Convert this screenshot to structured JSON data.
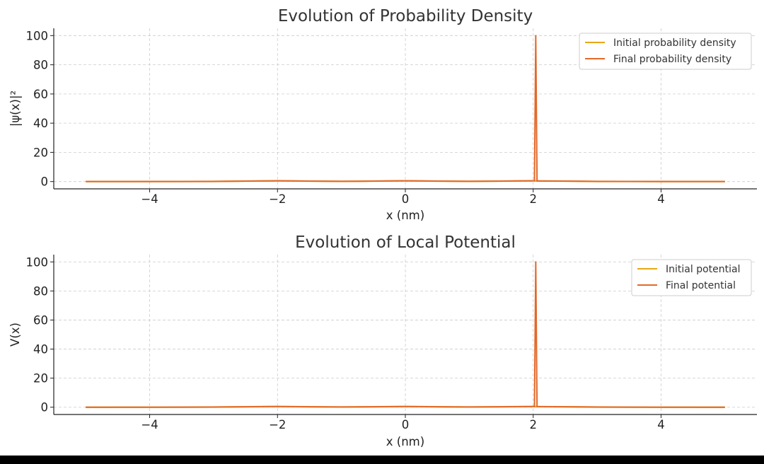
{
  "chart_data": [
    {
      "type": "line",
      "title": "Evolution of Probability Density",
      "xlabel": "x (nm)",
      "ylabel": "|ψ(x)|²",
      "xlim": [
        -5.5,
        5.5
      ],
      "ylim": [
        -5,
        105
      ],
      "xticks": [
        -4,
        -2,
        0,
        2,
        4
      ],
      "xtick_labels": [
        "−4",
        "−2",
        "0",
        "2",
        "4"
      ],
      "yticks": [
        0,
        20,
        40,
        60,
        80,
        100
      ],
      "ytick_labels": [
        "0",
        "20",
        "40",
        "60",
        "80",
        "100"
      ],
      "grid": true,
      "legend_position": "top-right",
      "series": [
        {
          "name": "Initial probability density",
          "color": "#E6A817",
          "x": [
            -5,
            -4,
            -3,
            -2.5,
            -2,
            -1.5,
            -1,
            -0.5,
            0,
            0.5,
            1,
            1.5,
            2,
            2.02,
            2.04,
            2.06,
            2.5,
            3,
            4,
            5
          ],
          "y": [
            0,
            0.02,
            0.1,
            0.3,
            0.5,
            0.3,
            0.15,
            0.3,
            0.5,
            0.3,
            0.15,
            0.3,
            0.5,
            0.5,
            0.45,
            0.4,
            0.3,
            0.1,
            0.02,
            0
          ]
        },
        {
          "name": "Final probability density",
          "color": "#E2692A",
          "x": [
            -5,
            -4,
            -3,
            -2.5,
            -2,
            -1.5,
            -1,
            -0.5,
            0,
            0.5,
            1,
            1.5,
            2,
            2.02,
            2.04,
            2.06,
            2.5,
            3,
            4,
            5
          ],
          "y": [
            0,
            0.02,
            0.1,
            0.3,
            0.5,
            0.3,
            0.15,
            0.3,
            0.5,
            0.3,
            0.15,
            0.3,
            0.5,
            0.5,
            100,
            0.4,
            0.3,
            0.1,
            0.02,
            0
          ]
        }
      ]
    },
    {
      "type": "line",
      "title": "Evolution of Local Potential",
      "xlabel": "x (nm)",
      "ylabel": "V(x)",
      "xlim": [
        -5.5,
        5.5
      ],
      "ylim": [
        -5,
        105
      ],
      "xticks": [
        -4,
        -2,
        0,
        2,
        4
      ],
      "xtick_labels": [
        "−4",
        "−2",
        "0",
        "2",
        "4"
      ],
      "yticks": [
        0,
        20,
        40,
        60,
        80,
        100
      ],
      "ytick_labels": [
        "0",
        "20",
        "40",
        "60",
        "80",
        "100"
      ],
      "grid": true,
      "legend_position": "top-right",
      "series": [
        {
          "name": "Initial potential",
          "color": "#E6A817",
          "x": [
            -5,
            -4,
            -3,
            -2.5,
            -2,
            -1.5,
            -1,
            -0.5,
            0,
            0.5,
            1,
            1.5,
            2,
            2.02,
            2.04,
            2.06,
            2.5,
            3,
            4,
            5
          ],
          "y": [
            0,
            0.02,
            0.1,
            0.3,
            0.5,
            0.3,
            0.15,
            0.3,
            0.5,
            0.3,
            0.15,
            0.3,
            0.5,
            0.5,
            0.45,
            0.4,
            0.3,
            0.1,
            0.02,
            0
          ]
        },
        {
          "name": "Final potential",
          "color": "#E2692A",
          "x": [
            -5,
            -4,
            -3,
            -2.5,
            -2,
            -1.5,
            -1,
            -0.5,
            0,
            0.5,
            1,
            1.5,
            2,
            2.02,
            2.04,
            2.06,
            2.5,
            3,
            4,
            5
          ],
          "y": [
            0,
            0.02,
            0.1,
            0.3,
            0.5,
            0.3,
            0.15,
            0.3,
            0.5,
            0.3,
            0.15,
            0.3,
            0.5,
            0.5,
            100,
            0.4,
            0.3,
            0.1,
            0.02,
            0
          ]
        }
      ]
    }
  ]
}
